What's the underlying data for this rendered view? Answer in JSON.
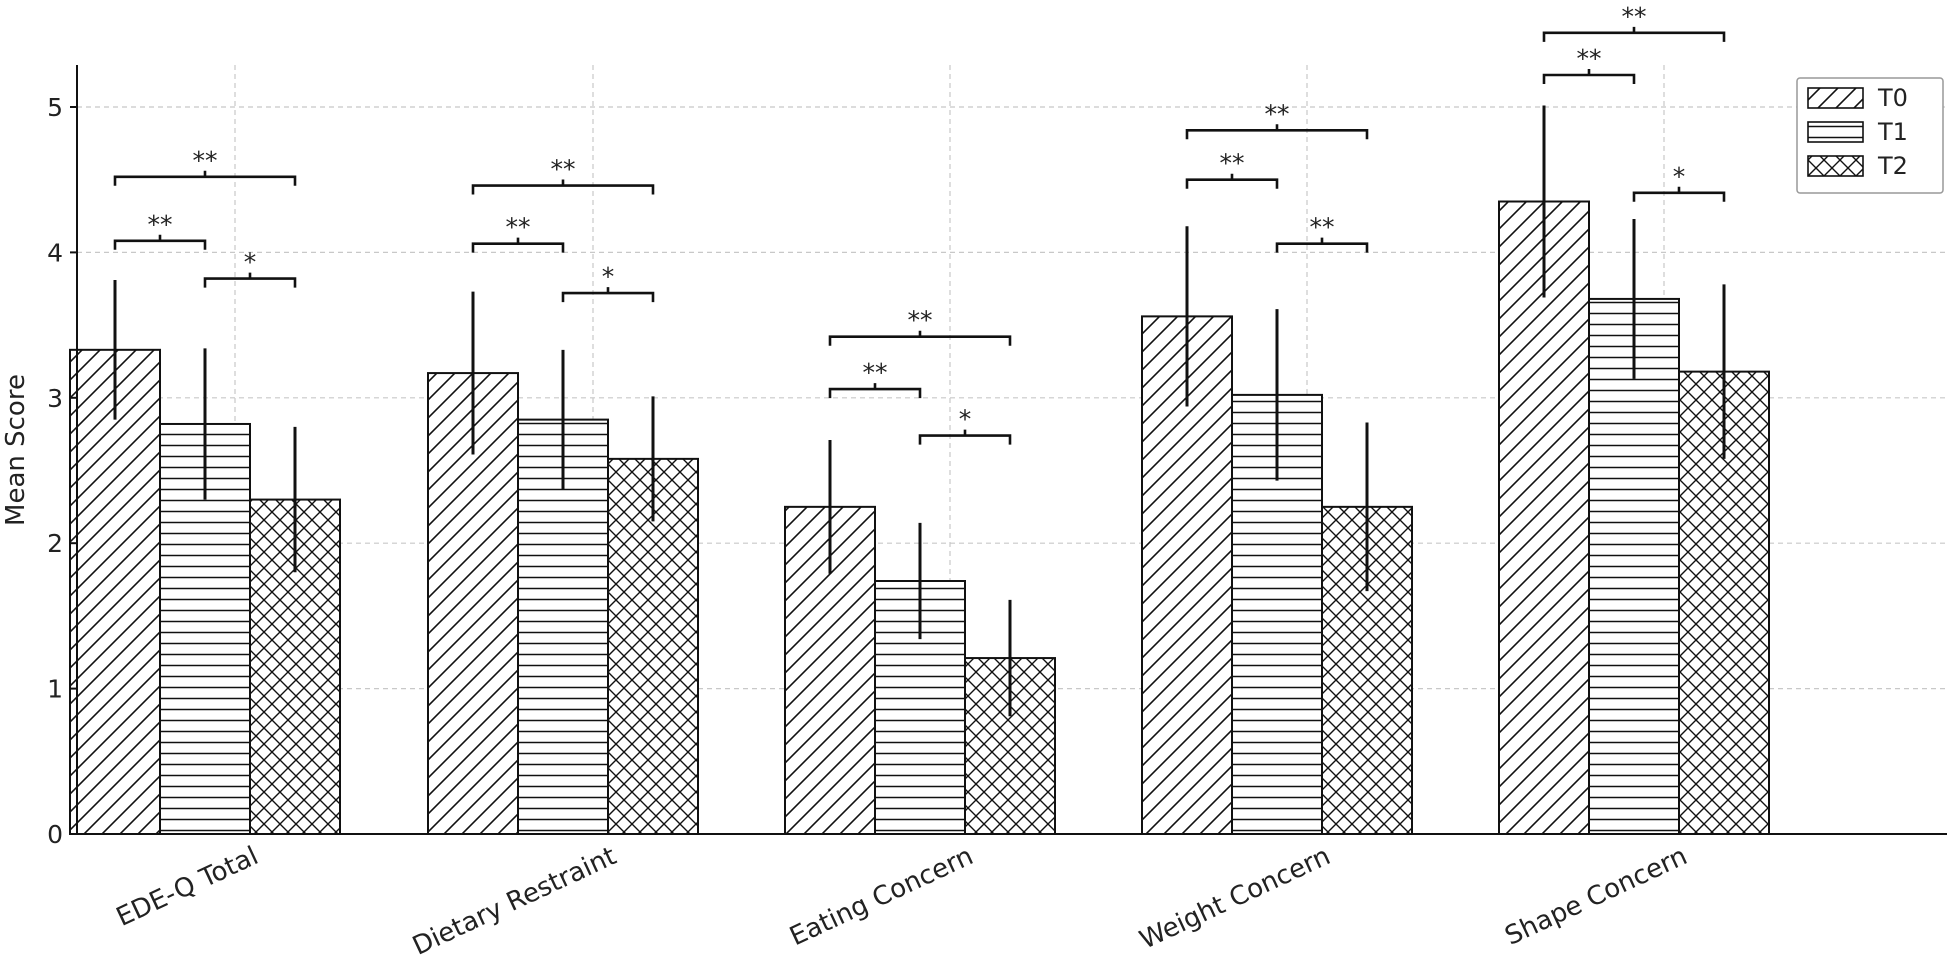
{
  "chart_data": {
    "type": "bar",
    "ylabel": "Mean Score",
    "ylim": [
      0,
      5.3
    ],
    "yticks": [
      0,
      1,
      2,
      3,
      4,
      5
    ],
    "grid": true,
    "legend_position": "top-right",
    "categories": [
      "EDE-Q Total",
      "Dietary Restraint",
      "Eating Concern",
      "Weight Concern",
      "Shape Concern"
    ],
    "series": [
      {
        "name": "T0",
        "pattern": "diagonal",
        "values": [
          3.33,
          3.17,
          2.25,
          3.56,
          4.35
        ],
        "errors": [
          0.48,
          0.56,
          0.46,
          0.62,
          0.66
        ]
      },
      {
        "name": "T1",
        "pattern": "horizontal",
        "values": [
          2.82,
          2.85,
          1.74,
          3.02,
          3.68
        ],
        "errors": [
          0.52,
          0.48,
          0.4,
          0.59,
          0.55
        ]
      },
      {
        "name": "T2",
        "pattern": "crosshatch",
        "values": [
          2.3,
          2.58,
          1.21,
          2.25,
          3.18
        ],
        "errors": [
          0.5,
          0.43,
          0.4,
          0.58,
          0.6
        ]
      }
    ],
    "significance": [
      {
        "category": "EDE-Q Total",
        "from": "T0",
        "to": "T1",
        "y": 4.08,
        "label": "**"
      },
      {
        "category": "EDE-Q Total",
        "from": "T0",
        "to": "T2",
        "y": 4.52,
        "label": "**"
      },
      {
        "category": "EDE-Q Total",
        "from": "T1",
        "to": "T2",
        "y": 3.82,
        "label": "*"
      },
      {
        "category": "Dietary Restraint",
        "from": "T0",
        "to": "T1",
        "y": 4.06,
        "label": "**"
      },
      {
        "category": "Dietary Restraint",
        "from": "T0",
        "to": "T2",
        "y": 4.46,
        "label": "**"
      },
      {
        "category": "Dietary Restraint",
        "from": "T1",
        "to": "T2",
        "y": 3.72,
        "label": "*"
      },
      {
        "category": "Eating Concern",
        "from": "T0",
        "to": "T1",
        "y": 3.06,
        "label": "**"
      },
      {
        "category": "Eating Concern",
        "from": "T0",
        "to": "T2",
        "y": 3.42,
        "label": "**"
      },
      {
        "category": "Eating Concern",
        "from": "T1",
        "to": "T2",
        "y": 2.74,
        "label": "*"
      },
      {
        "category": "Weight Concern",
        "from": "T0",
        "to": "T1",
        "y": 4.5,
        "label": "**"
      },
      {
        "category": "Weight Concern",
        "from": "T0",
        "to": "T2",
        "y": 4.84,
        "label": "**"
      },
      {
        "category": "Weight Concern",
        "from": "T1",
        "to": "T2",
        "y": 4.06,
        "label": "**"
      },
      {
        "category": "Shape Concern",
        "from": "T0",
        "to": "T1",
        "y": 5.22,
        "label": "**"
      },
      {
        "category": "Shape Concern",
        "from": "T0",
        "to": "T2",
        "y": 5.51,
        "label": "**"
      },
      {
        "category": "Shape Concern",
        "from": "T1",
        "to": "T2",
        "y": 4.41,
        "label": "*"
      }
    ]
  }
}
